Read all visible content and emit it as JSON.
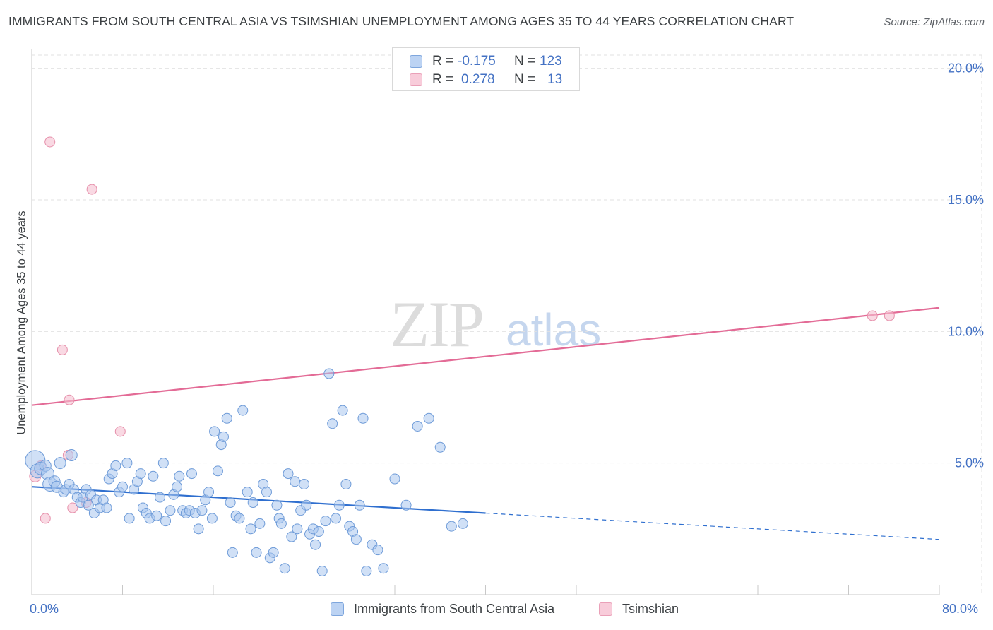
{
  "header": {
    "title": "IMMIGRANTS FROM SOUTH CENTRAL ASIA VS TSIMSHIAN UNEMPLOYMENT AMONG AGES 35 TO 44 YEARS CORRELATION CHART",
    "source": "Source: ZipAtlas.com"
  },
  "watermark": {
    "zip": "ZIP",
    "atlas": "atlas"
  },
  "legend": {
    "rows": [
      {
        "r_label": "R =",
        "r_value": "-0.175",
        "n_label": "N =",
        "n_value": "123"
      },
      {
        "r_label": "R =",
        "r_value": "0.278",
        "n_label": "N =",
        "n_value": "13"
      }
    ]
  },
  "bottom_legend": {
    "blue_label": "Immigrants from South Central Asia",
    "pink_label": "Tsimshian"
  },
  "chart_data": {
    "type": "scatter",
    "title": "IMMIGRANTS FROM SOUTH CENTRAL ASIA VS TSIMSHIAN UNEMPLOYMENT AMONG AGES 35 TO 44 YEARS CORRELATION CHART",
    "xlabel": "",
    "ylabel": "Unemployment Among Ages 35 to 44 years",
    "xlim": [
      0,
      80
    ],
    "ylim": [
      0,
      20.5
    ],
    "x_tick_labels": [
      "0.0%",
      "80.0%"
    ],
    "y_ticks": [
      5,
      10,
      15,
      20
    ],
    "y_tick_labels": [
      "5.0%",
      "10.0%",
      "15.0%",
      "20.0%"
    ],
    "grid": true,
    "colors": {
      "blue_fill": "#a9c6ee",
      "blue_stroke": "#6e9bd8",
      "blue_line": "#2f6fcf",
      "pink_fill": "#f5bfd0",
      "pink_stroke": "#e690ab",
      "pink_line": "#e36b96",
      "tick_text": "#4472c4",
      "grid": "#e2e2e2"
    },
    "series": [
      {
        "name": "Immigrants from South Central Asia",
        "R": -0.175,
        "N": 123,
        "trend": {
          "x0": 0,
          "y0": 4.1,
          "x1": 40,
          "y1": 3.1,
          "dash_to_x": 80,
          "dash_to_y": 2.1
        },
        "points": [
          [
            0.3,
            5.1,
            14
          ],
          [
            0.5,
            4.7,
            10
          ],
          [
            0.8,
            4.8,
            9
          ],
          [
            1.2,
            4.9,
            8
          ],
          [
            1.4,
            4.6,
            9
          ],
          [
            1.6,
            4.2,
            10
          ],
          [
            2.0,
            4.3,
            8
          ],
          [
            2.2,
            4.1,
            8
          ],
          [
            2.5,
            5.0,
            8
          ],
          [
            2.8,
            3.9,
            7
          ],
          [
            3.0,
            4.0,
            7
          ],
          [
            3.3,
            4.2,
            7
          ],
          [
            3.5,
            5.3,
            8
          ],
          [
            3.7,
            4.0,
            7
          ],
          [
            4.0,
            3.7,
            7
          ],
          [
            4.3,
            3.5,
            7
          ],
          [
            4.5,
            3.7,
            7
          ],
          [
            4.8,
            4.0,
            7
          ],
          [
            5.0,
            3.4,
            7
          ],
          [
            5.2,
            3.8,
            7
          ],
          [
            5.5,
            3.1,
            7
          ],
          [
            5.7,
            3.6,
            7
          ],
          [
            6.0,
            3.3,
            7
          ],
          [
            6.3,
            3.6,
            7
          ],
          [
            6.6,
            3.3,
            7
          ],
          [
            6.8,
            4.4,
            7
          ],
          [
            7.1,
            4.6,
            7
          ],
          [
            7.4,
            4.9,
            7
          ],
          [
            7.7,
            3.9,
            7
          ],
          [
            8.0,
            4.1,
            7
          ],
          [
            8.4,
            5.0,
            7
          ],
          [
            8.6,
            2.9,
            7
          ],
          [
            9.0,
            4.0,
            7
          ],
          [
            9.3,
            4.3,
            7
          ],
          [
            9.6,
            4.6,
            7
          ],
          [
            9.8,
            3.3,
            7
          ],
          [
            10.1,
            3.1,
            7
          ],
          [
            10.4,
            2.9,
            7
          ],
          [
            10.7,
            4.5,
            7
          ],
          [
            11.0,
            3.0,
            7
          ],
          [
            11.3,
            3.7,
            7
          ],
          [
            11.6,
            5.0,
            7
          ],
          [
            11.8,
            2.8,
            7
          ],
          [
            12.2,
            3.2,
            7
          ],
          [
            12.5,
            3.8,
            7
          ],
          [
            12.8,
            4.1,
            7
          ],
          [
            13.0,
            4.5,
            7
          ],
          [
            13.3,
            3.2,
            7
          ],
          [
            13.6,
            3.1,
            7
          ],
          [
            13.9,
            3.2,
            7
          ],
          [
            14.1,
            4.6,
            7
          ],
          [
            14.4,
            3.1,
            7
          ],
          [
            14.7,
            2.5,
            7
          ],
          [
            15.0,
            3.2,
            7
          ],
          [
            15.3,
            3.6,
            7
          ],
          [
            15.6,
            3.9,
            7
          ],
          [
            15.9,
            2.9,
            7
          ],
          [
            16.1,
            6.2,
            7
          ],
          [
            16.4,
            4.7,
            7
          ],
          [
            16.7,
            5.7,
            7
          ],
          [
            16.9,
            6.0,
            7
          ],
          [
            17.2,
            6.7,
            7
          ],
          [
            17.5,
            3.5,
            7
          ],
          [
            17.7,
            1.6,
            7
          ],
          [
            18.0,
            3.0,
            7
          ],
          [
            18.3,
            2.9,
            7
          ],
          [
            18.6,
            7.0,
            7
          ],
          [
            19.0,
            3.9,
            7
          ],
          [
            19.3,
            2.5,
            7
          ],
          [
            19.5,
            3.5,
            7
          ],
          [
            19.8,
            1.6,
            7
          ],
          [
            20.1,
            2.7,
            7
          ],
          [
            20.4,
            4.2,
            7
          ],
          [
            20.7,
            3.9,
            7
          ],
          [
            21.0,
            1.4,
            7
          ],
          [
            21.3,
            1.6,
            7
          ],
          [
            21.6,
            3.4,
            7
          ],
          [
            21.8,
            2.9,
            7
          ],
          [
            22.0,
            2.7,
            7
          ],
          [
            22.3,
            1.0,
            7
          ],
          [
            22.6,
            4.6,
            7
          ],
          [
            22.9,
            2.2,
            7
          ],
          [
            23.2,
            4.3,
            7
          ],
          [
            23.4,
            2.5,
            7
          ],
          [
            23.7,
            3.2,
            7
          ],
          [
            24.0,
            4.2,
            7
          ],
          [
            24.2,
            3.4,
            7
          ],
          [
            24.5,
            2.3,
            7
          ],
          [
            24.8,
            2.5,
            7
          ],
          [
            25.0,
            1.9,
            7
          ],
          [
            25.3,
            2.4,
            7
          ],
          [
            25.6,
            0.9,
            7
          ],
          [
            25.9,
            2.8,
            7
          ],
          [
            26.2,
            8.4,
            7
          ],
          [
            26.5,
            6.5,
            7
          ],
          [
            26.8,
            2.9,
            7
          ],
          [
            27.1,
            3.4,
            7
          ],
          [
            27.4,
            7.0,
            7
          ],
          [
            27.7,
            4.2,
            7
          ],
          [
            28.0,
            2.6,
            7
          ],
          [
            28.3,
            2.4,
            7
          ],
          [
            28.6,
            2.1,
            7
          ],
          [
            28.9,
            3.4,
            7
          ],
          [
            29.2,
            6.7,
            7
          ],
          [
            29.5,
            0.9,
            7
          ],
          [
            30.0,
            1.9,
            7
          ],
          [
            30.5,
            1.7,
            7
          ],
          [
            31.0,
            1.0,
            7
          ],
          [
            32.0,
            4.4,
            7
          ],
          [
            33.0,
            3.4,
            7
          ],
          [
            34.0,
            6.4,
            7
          ],
          [
            35.0,
            6.7,
            7
          ],
          [
            36.0,
            5.6,
            7
          ],
          [
            37.0,
            2.6,
            7
          ],
          [
            38.0,
            2.7,
            7
          ]
        ]
      },
      {
        "name": "Tsimshian",
        "R": 0.278,
        "N": 13,
        "trend": {
          "x0": 0,
          "y0": 7.2,
          "x1": 80,
          "y1": 10.9
        },
        "points": [
          [
            0.3,
            4.5,
            8
          ],
          [
            0.8,
            4.9,
            7
          ],
          [
            1.2,
            2.9,
            7
          ],
          [
            1.6,
            17.2,
            7
          ],
          [
            2.7,
            9.3,
            7
          ],
          [
            3.2,
            5.3,
            7
          ],
          [
            3.3,
            7.4,
            7
          ],
          [
            3.6,
            3.3,
            7
          ],
          [
            4.8,
            3.5,
            7
          ],
          [
            5.3,
            15.4,
            7
          ],
          [
            7.8,
            6.2,
            7
          ],
          [
            74.1,
            10.6,
            7
          ],
          [
            75.6,
            10.6,
            7
          ]
        ]
      }
    ]
  }
}
